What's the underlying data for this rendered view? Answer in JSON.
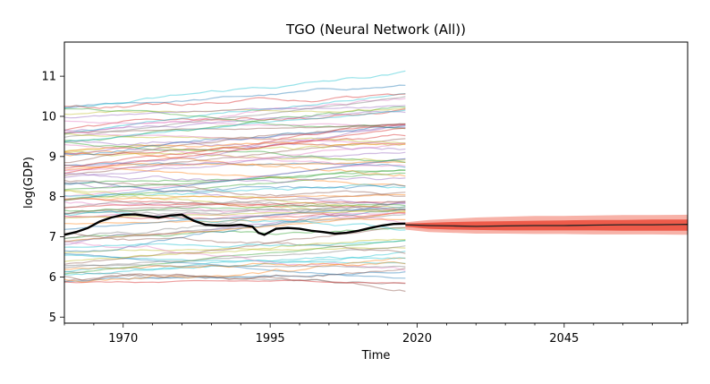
{
  "chart_data": {
    "type": "line",
    "title": "TGO (Neural Network (All))",
    "xlabel": "Time",
    "ylabel": "log(GDP)",
    "xlim": [
      1960,
      2066
    ],
    "ylim": [
      4.85,
      11.85
    ],
    "x_ticks": [
      1970,
      1995,
      2020,
      2045
    ],
    "x_tick_labels": [
      "1970",
      "1995",
      "2020",
      "2045"
    ],
    "y_ticks": [
      5,
      6,
      7,
      8,
      9,
      10,
      11
    ],
    "y_tick_labels": [
      "5",
      "6",
      "7",
      "8",
      "9",
      "10",
      "11"
    ],
    "grid": false,
    "background_country_count": 90,
    "background_country_start_range": [
      5.8,
      10.3
    ],
    "highlight_series": {
      "color": "#000000",
      "points": [
        [
          1960,
          7.05
        ],
        [
          1962,
          7.12
        ],
        [
          1964,
          7.22
        ],
        [
          1966,
          7.38
        ],
        [
          1968,
          7.48
        ],
        [
          1970,
          7.55
        ],
        [
          1972,
          7.56
        ],
        [
          1974,
          7.52
        ],
        [
          1976,
          7.48
        ],
        [
          1978,
          7.53
        ],
        [
          1980,
          7.55
        ],
        [
          1982,
          7.4
        ],
        [
          1984,
          7.3
        ],
        [
          1986,
          7.28
        ],
        [
          1988,
          7.28
        ],
        [
          1990,
          7.3
        ],
        [
          1992,
          7.25
        ],
        [
          1993,
          7.1
        ],
        [
          1994,
          7.05
        ],
        [
          1996,
          7.2
        ],
        [
          1998,
          7.22
        ],
        [
          2000,
          7.2
        ],
        [
          2002,
          7.15
        ],
        [
          2004,
          7.12
        ],
        [
          2006,
          7.08
        ],
        [
          2008,
          7.1
        ],
        [
          2010,
          7.15
        ],
        [
          2012,
          7.22
        ],
        [
          2014,
          7.28
        ],
        [
          2016,
          7.32
        ],
        [
          2018,
          7.33
        ]
      ]
    },
    "forecast": {
      "start": 2018,
      "end": 2066,
      "median": [
        [
          2018,
          7.3
        ],
        [
          2022,
          7.28
        ],
        [
          2026,
          7.27
        ],
        [
          2030,
          7.26
        ],
        [
          2035,
          7.27
        ],
        [
          2040,
          7.28
        ],
        [
          2045,
          7.28
        ],
        [
          2050,
          7.29
        ],
        [
          2055,
          7.3
        ],
        [
          2060,
          7.3
        ],
        [
          2066,
          7.31
        ]
      ],
      "band_outer": [
        [
          2018,
          7.18,
          7.36
        ],
        [
          2022,
          7.12,
          7.42
        ],
        [
          2026,
          7.1,
          7.45
        ],
        [
          2030,
          7.08,
          7.48
        ],
        [
          2035,
          7.08,
          7.5
        ],
        [
          2040,
          7.07,
          7.52
        ],
        [
          2045,
          7.07,
          7.52
        ],
        [
          2050,
          7.06,
          7.53
        ],
        [
          2055,
          7.06,
          7.54
        ],
        [
          2060,
          7.06,
          7.54
        ],
        [
          2066,
          7.05,
          7.55
        ]
      ],
      "band_inner": [
        [
          2018,
          7.25,
          7.33
        ],
        [
          2022,
          7.2,
          7.35
        ],
        [
          2026,
          7.18,
          7.37
        ],
        [
          2030,
          7.17,
          7.38
        ],
        [
          2035,
          7.16,
          7.39
        ],
        [
          2040,
          7.16,
          7.4
        ],
        [
          2045,
          7.16,
          7.41
        ],
        [
          2050,
          7.16,
          7.42
        ],
        [
          2055,
          7.15,
          7.42
        ],
        [
          2060,
          7.15,
          7.43
        ],
        [
          2066,
          7.15,
          7.43
        ]
      ],
      "outer_color": "#f7b2a8",
      "inner_color": "#ee5b4a",
      "median_color": "#222222"
    },
    "palette": [
      "#1f77b4",
      "#ff7f0e",
      "#2ca02c",
      "#d62728",
      "#9467bd",
      "#8c564b",
      "#e377c2",
      "#7f7f7f",
      "#bcbd22",
      "#17becf"
    ]
  }
}
